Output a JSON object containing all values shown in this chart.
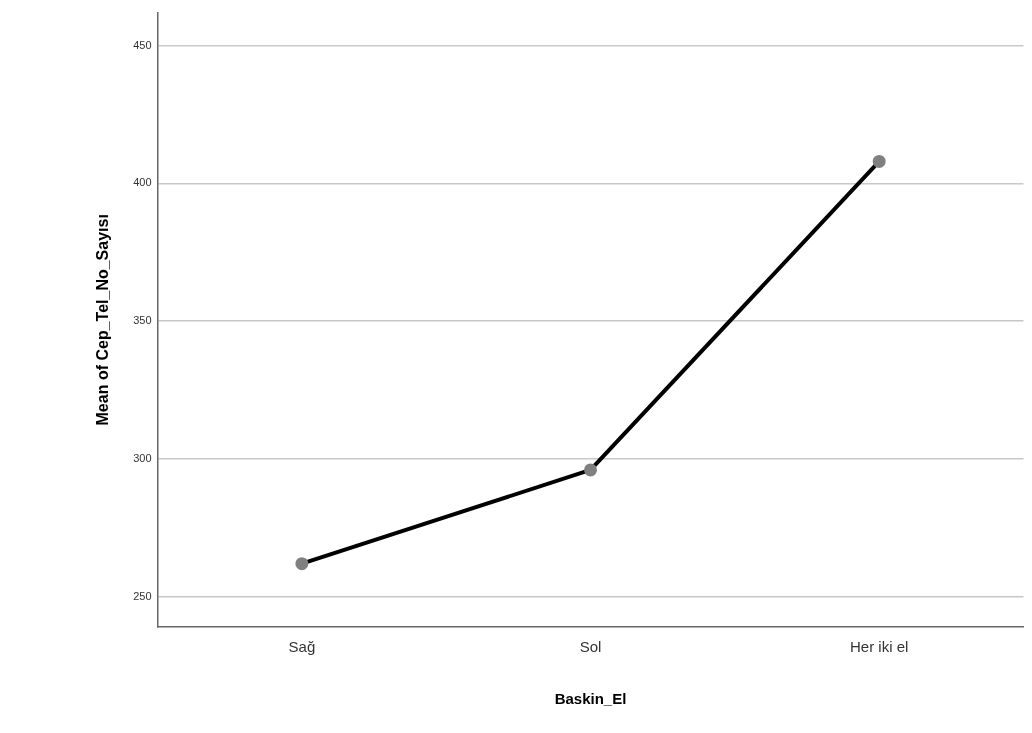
{
  "chart_data": {
    "type": "line",
    "xlabel": "Baskin_El",
    "ylabel": "Mean of Cep_Tel_No_Sayısı",
    "categories": [
      "Sağ",
      "Sol",
      "Her iki el"
    ],
    "series": [
      {
        "color": "#000000",
        "values": [
          262,
          296,
          408
        ]
      }
    ],
    "ylim": [
      239,
      462
    ],
    "yticks": [
      250,
      300,
      350,
      400,
      450
    ],
    "grid": "y",
    "legend": false,
    "marker": "circle",
    "line_style": "solid"
  }
}
